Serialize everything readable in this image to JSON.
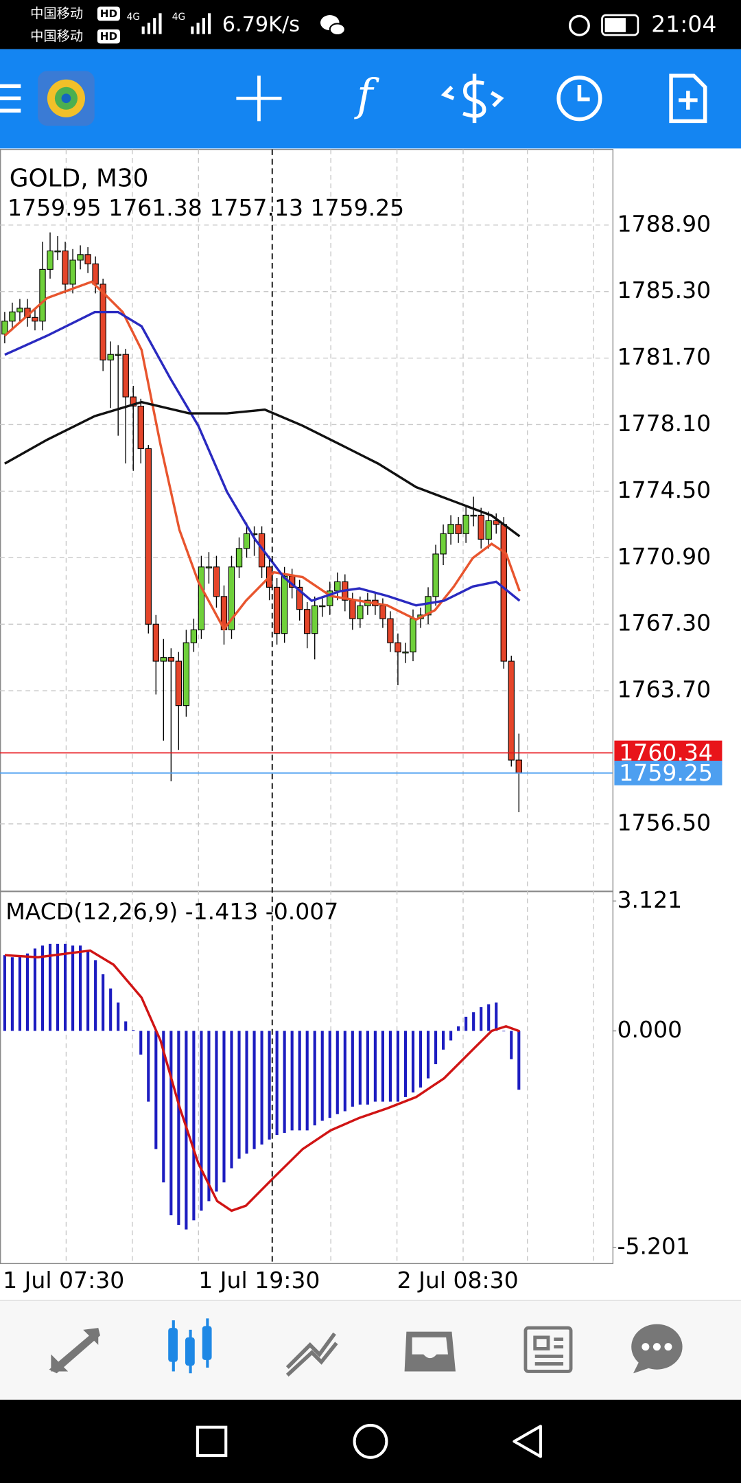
{
  "status_bar": {
    "carrier_1": "中国移动",
    "carrier_2": "中国移动",
    "hd": "HD",
    "network": "4G",
    "speed": "6.79K/s",
    "time": "21:04"
  },
  "toolbar": {
    "indicator_icon": "f"
  },
  "time_labels": [
    "1 Jul 07:30",
    "1 Jul 19:30",
    "2 Jul 08:30"
  ],
  "chart_data": [
    {
      "type": "candlestick",
      "title": "GOLD, M30",
      "subtitle": "1759.95 1761.38 1757.13 1759.25",
      "ylim": [
        1752.87,
        1792.99
      ],
      "yticks": [
        {
          "value": 1788.9,
          "label": "1788.90"
        },
        {
          "value": 1785.3,
          "label": "1785.30"
        },
        {
          "value": 1781.7,
          "label": "1781.70"
        },
        {
          "value": 1778.1,
          "label": "1778.10"
        },
        {
          "value": 1774.5,
          "label": "1774.50"
        },
        {
          "value": 1770.9,
          "label": "1770.90"
        },
        {
          "value": 1767.3,
          "label": "1767.30"
        },
        {
          "value": 1763.7,
          "label": "1763.70"
        },
        {
          "value": 1756.5,
          "label": "1756.50"
        }
      ],
      "grid": true,
      "candles": {
        "up_color": "#6fd03a",
        "down_color": "#e5452a",
        "open": [
          1783.0,
          1783.7,
          1784.2,
          1784.4,
          1783.9,
          1783.7,
          1786.5,
          1787.5,
          1787.5,
          1785.7,
          1787.0,
          1787.3,
          1786.8,
          1785.7,
          1781.6,
          1781.9,
          1781.9,
          1779.6,
          1779.1,
          1776.8,
          1767.3,
          1765.3,
          1765.5,
          1765.3,
          1762.9,
          1766.3,
          1767.0,
          1770.4,
          1770.4,
          1768.8,
          1767.0,
          1770.4,
          1771.4,
          1772.2,
          1772.2,
          1770.4,
          1769.3,
          1766.8,
          1769.9,
          1769.3,
          1768.1,
          1766.8,
          1768.3,
          1768.3,
          1769.1,
          1769.6,
          1768.6,
          1767.6,
          1768.3,
          1768.6,
          1768.3,
          1767.6,
          1766.3,
          1765.8,
          1765.8,
          1767.6,
          1767.8,
          1768.8,
          1771.1,
          1772.2,
          1772.7,
          1772.2,
          1773.2,
          1773.2,
          1771.9,
          1772.9,
          1772.7,
          1765.3,
          1759.95
        ],
        "high": [
          1784.2,
          1784.7,
          1784.9,
          1784.9,
          1784.4,
          1788.0,
          1788.5,
          1788.3,
          1788.0,
          1787.6,
          1787.8,
          1787.7,
          1787.2,
          1786.0,
          1782.6,
          1782.4,
          1782.2,
          1780.2,
          1779.5,
          1777.0,
          1767.8,
          1766.5,
          1766.0,
          1765.8,
          1767.0,
          1767.6,
          1771.0,
          1771.2,
          1771.0,
          1769.4,
          1771.0,
          1772.0,
          1772.8,
          1772.6,
          1772.6,
          1771.0,
          1769.8,
          1770.4,
          1770.3,
          1769.7,
          1768.5,
          1768.8,
          1768.8,
          1769.6,
          1770.1,
          1770.0,
          1769.0,
          1768.8,
          1769.0,
          1769.0,
          1768.7,
          1768.0,
          1766.8,
          1766.3,
          1768.1,
          1768.2,
          1769.3,
          1771.6,
          1772.7,
          1773.2,
          1773.1,
          1773.7,
          1774.2,
          1773.6,
          1773.4,
          1773.3,
          1773.1,
          1765.6,
          1761.38
        ],
        "low": [
          1782.5,
          1783.2,
          1783.7,
          1783.4,
          1783.2,
          1783.2,
          1786.0,
          1787.0,
          1785.2,
          1785.2,
          1786.5,
          1786.3,
          1785.2,
          1781.0,
          1779.0,
          1777.5,
          1776.0,
          1775.6,
          1776.0,
          1766.8,
          1763.5,
          1761.0,
          1758.8,
          1760.5,
          1762.3,
          1765.8,
          1766.5,
          1769.5,
          1768.2,
          1766.2,
          1766.5,
          1769.8,
          1770.9,
          1771.0,
          1769.8,
          1768.6,
          1766.2,
          1766.3,
          1768.7,
          1767.5,
          1766.0,
          1765.4,
          1767.7,
          1767.8,
          1768.6,
          1768.0,
          1767.0,
          1767.1,
          1767.8,
          1767.8,
          1767.1,
          1765.8,
          1764.0,
          1765.2,
          1765.3,
          1767.1,
          1767.3,
          1768.3,
          1770.5,
          1771.6,
          1771.7,
          1771.7,
          1772.6,
          1771.4,
          1771.4,
          1772.2,
          1764.9,
          1759.6,
          1757.13
        ],
        "close": [
          1783.7,
          1784.2,
          1784.4,
          1783.9,
          1783.7,
          1786.5,
          1787.5,
          1787.5,
          1785.7,
          1787.0,
          1787.3,
          1786.8,
          1785.7,
          1781.6,
          1781.9,
          1781.9,
          1779.6,
          1779.1,
          1776.8,
          1767.3,
          1765.3,
          1765.5,
          1765.3,
          1762.9,
          1766.3,
          1767.0,
          1770.4,
          1770.4,
          1768.8,
          1767.0,
          1770.4,
          1771.4,
          1772.2,
          1772.2,
          1770.4,
          1769.3,
          1766.8,
          1769.9,
          1769.3,
          1768.1,
          1766.8,
          1768.3,
          1768.3,
          1769.1,
          1769.6,
          1768.6,
          1767.6,
          1768.3,
          1768.6,
          1768.3,
          1767.6,
          1766.3,
          1765.8,
          1765.8,
          1767.6,
          1767.8,
          1768.8,
          1771.1,
          1772.2,
          1772.7,
          1772.2,
          1773.2,
          1773.2,
          1771.9,
          1772.9,
          1772.7,
          1765.3,
          1759.95,
          1759.25
        ]
      },
      "moving_averages": [
        {
          "color": "#e8552e",
          "x": [
            0,
            5.6,
            11.5,
            13.1,
            15.6,
            18.1,
            20.6,
            23.1,
            25.6,
            29,
            31.9,
            35.6,
            39.4,
            43.1,
            46.9,
            50.6,
            54.4,
            56.9,
            59.4,
            61.9,
            64.4,
            66.3,
            68.1
          ],
          "values": [
            1782.91,
            1784.95,
            1785.83,
            1785.21,
            1784.19,
            1782.14,
            1777.02,
            1772.41,
            1769.6,
            1767.04,
            1768.57,
            1770.11,
            1769.85,
            1768.83,
            1768.57,
            1768.32,
            1767.55,
            1768.06,
            1769.34,
            1770.88,
            1771.65,
            1771.13,
            1769.09
          ]
        },
        {
          "color": "#2a2ac0",
          "x": [
            0,
            5.6,
            11.9,
            15,
            18.1,
            21.9,
            25.6,
            29.4,
            33.1,
            36.9,
            40.6,
            44.4,
            46.9,
            50.6,
            54.4,
            58.1,
            61.9,
            65,
            68.1
          ],
          "values": [
            1781.88,
            1782.91,
            1784.19,
            1784.19,
            1783.42,
            1780.6,
            1778.04,
            1774.46,
            1771.9,
            1769.85,
            1768.57,
            1769.09,
            1769.24,
            1768.83,
            1768.32,
            1768.57,
            1769.34,
            1769.6,
            1768.57
          ]
        },
        {
          "color": "#111111",
          "x": [
            0,
            5.6,
            11.9,
            18.1,
            24.4,
            29.4,
            34.4,
            39.4,
            44.4,
            49.4,
            54.4,
            59.4,
            64.4,
            68.1
          ],
          "values": [
            1775.99,
            1777.28,
            1778.56,
            1779.32,
            1778.71,
            1778.71,
            1778.91,
            1778.04,
            1777.02,
            1775.99,
            1774.72,
            1773.95,
            1773.18,
            1772.06
          ]
        }
      ],
      "bid_line": {
        "value": 1760.34,
        "color": "#e8141a"
      },
      "last_line": {
        "value": 1759.25,
        "color": "#4d9ff0"
      }
    },
    {
      "type": "macd",
      "title": "MACD(12,26,9) -1.413 -0.007",
      "ylim": [
        -5.59,
        3.34
      ],
      "yticks": [
        3.121,
        {
          "value": 0,
          "label": "0.000"
        },
        -5.201
      ],
      "histogram": {
        "color": "#1c1cc0",
        "values": [
          1.82,
          1.77,
          1.82,
          1.86,
          1.98,
          2.05,
          2.09,
          2.09,
          2.09,
          2.05,
          2.05,
          1.93,
          1.7,
          1.36,
          1.02,
          0.68,
          0.23,
          0.02,
          -0.57,
          -1.7,
          -2.84,
          -3.64,
          -4.43,
          -4.66,
          -4.77,
          -4.55,
          -4.32,
          -4.09,
          -3.86,
          -3.64,
          -3.3,
          -3.07,
          -2.95,
          -2.84,
          -2.73,
          -2.61,
          -2.5,
          -2.45,
          -2.39,
          -2.39,
          -2.39,
          -2.27,
          -2.16,
          -2.09,
          -2.0,
          -1.93,
          -1.82,
          -1.77,
          -1.77,
          -1.7,
          -1.7,
          -1.7,
          -1.7,
          -1.59,
          -1.48,
          -1.36,
          -1.14,
          -0.8,
          -0.45,
          -0.23,
          0.11,
          0.34,
          0.45,
          0.57,
          0.64,
          0.68,
          -0.01,
          -0.68,
          -1.413
        ]
      },
      "signal": {
        "color": "#d01414",
        "x": [
          0,
          4.4,
          11.3,
          14.4,
          18.1,
          20.6,
          23.1,
          25.6,
          28.1,
          30,
          31.9,
          35.6,
          39.4,
          43.1,
          46.9,
          50.6,
          54.4,
          58.1,
          61.9,
          64.4,
          66.3,
          68.1
        ],
        "values": [
          1.82,
          1.77,
          1.93,
          1.59,
          0.8,
          -0.23,
          -1.82,
          -3.18,
          -4.09,
          -4.32,
          -4.2,
          -3.52,
          -2.84,
          -2.39,
          -2.09,
          -1.86,
          -1.59,
          -1.14,
          -0.45,
          0.0,
          0.11,
          -0.007
        ]
      }
    }
  ]
}
